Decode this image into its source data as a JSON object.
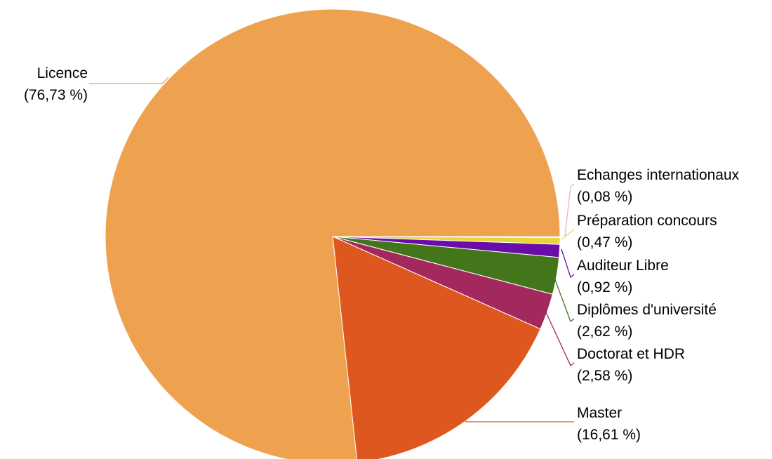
{
  "chart_data": {
    "type": "pie",
    "start_angle_deg": 0,
    "direction": "clockwise",
    "slices": [
      {
        "label": "Echanges internationaux",
        "value": 0.08,
        "percent_text": "(0,08 %)",
        "color": "#e6b3c9"
      },
      {
        "label": "Préparation concours",
        "value": 0.47,
        "percent_text": "(0,47 %)",
        "color": "#e6d53d"
      },
      {
        "label": "Auditeur Libre",
        "value": 0.92,
        "percent_text": "(0,92 %)",
        "color": "#6a0da8"
      },
      {
        "label": "Diplômes d'université",
        "value": 2.62,
        "percent_text": "(2,62 %)",
        "color": "#43761a"
      },
      {
        "label": "Doctorat et HDR",
        "value": 2.58,
        "percent_text": "(2,58 %)",
        "color": "#a3285e"
      },
      {
        "label": "Master",
        "value": 16.61,
        "percent_text": "(16,61 %)",
        "color": "#de571f"
      },
      {
        "label": "Licence",
        "value": 76.73,
        "percent_text": "(76,73 %)",
        "color": "#eea250"
      }
    ]
  }
}
